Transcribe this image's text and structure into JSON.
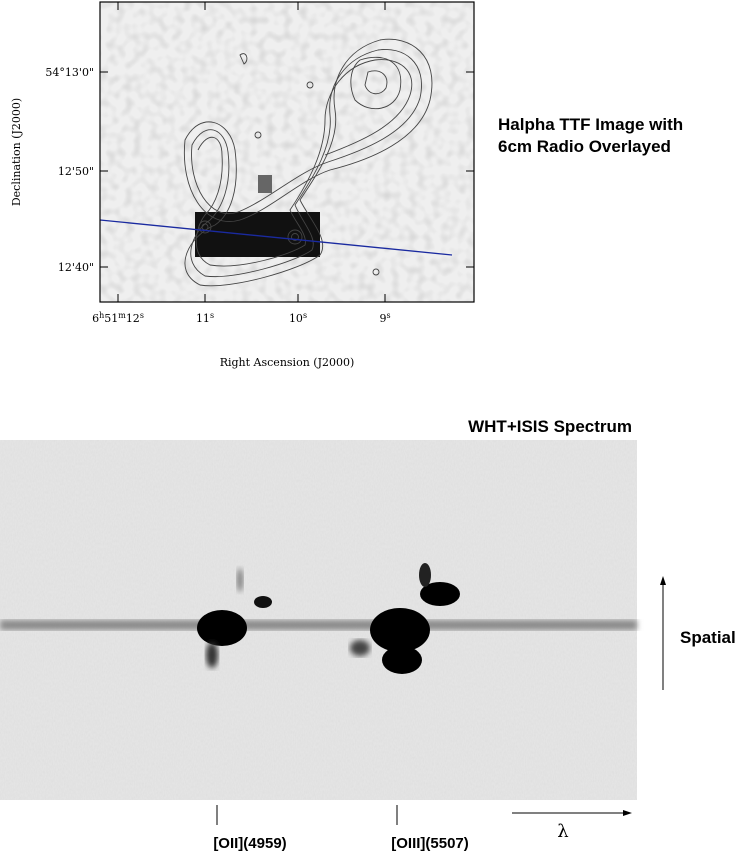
{
  "image_panel": {
    "y_axis_label": "Declination (J2000)",
    "y_tick_labels": [
      "54°13'0\"",
      "12'50\"",
      "12'40\""
    ],
    "x_tick_labels": [
      {
        "parts": [
          "6",
          "h",
          "51",
          "m",
          "12",
          "s"
        ]
      },
      {
        "parts": [
          "11",
          "s"
        ]
      },
      {
        "parts": [
          "10",
          "s"
        ]
      },
      {
        "parts": [
          "9",
          "s"
        ]
      }
    ],
    "x_axis_label": "Right Ascension (J2000)",
    "caption": [
      "Halpha TTF Image with",
      "6cm Radio Overlayed"
    ]
  },
  "spectrum_panel": {
    "title": "WHT+ISIS Spectrum",
    "spatial_label": "Spatial",
    "line_labels": [
      "[OII](4959)",
      "[OIII](5507)"
    ],
    "wavelength_label": "λ"
  }
}
